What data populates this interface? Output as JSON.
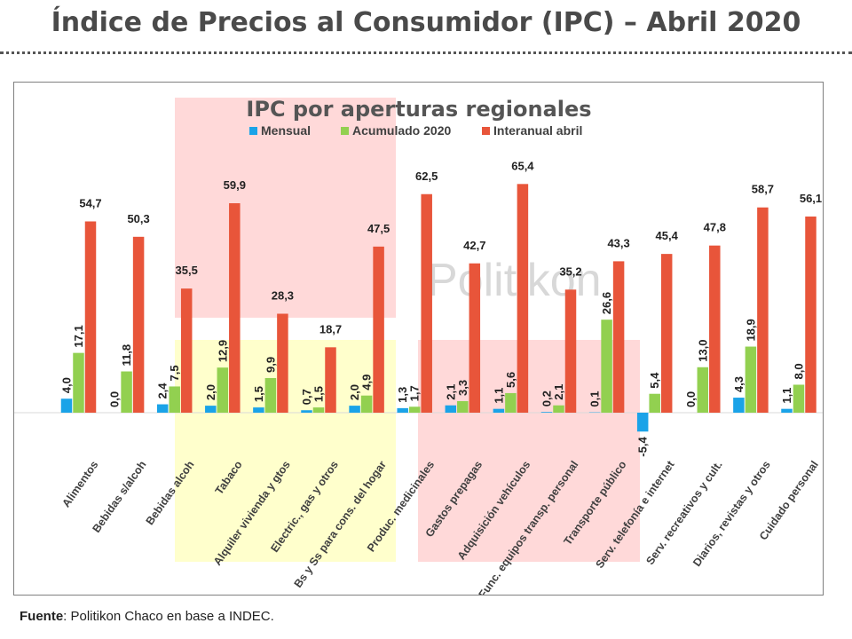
{
  "page": {
    "title": "Índice de Precios al Consumidor (IPC) – Abril 2020",
    "source_label": "Fuente",
    "source_text": ": Politikon Chaco en base a INDEC."
  },
  "watermark": "Politikon",
  "colors": {
    "mensual": "#1aa3e8",
    "acumulado": "#92d050",
    "interanual": "#e8553a",
    "red_region": "#ffd9d9",
    "yellow_region": "#ffffcc"
  },
  "chart_data": {
    "type": "bar",
    "title": "IPC por aperturas regionales",
    "categories": [
      "Alimentos",
      "Bebidas s/alcoh",
      "Bebidas alcoh",
      "Tabaco",
      "Alquiler vivienda y gtos",
      "Electric., gas y otros",
      "Bs y Ss para cons. del hogar",
      "Produc. medicinales",
      "Gastos prepagas",
      "Adquisición vehículos",
      "Func. equipos transp. personal",
      "Transporte público",
      "Serv. telefonía e internet",
      "Serv. recreativos y cult.",
      "Diarios, revistas y otros",
      "Cuidado personal"
    ],
    "series": [
      {
        "name": "Mensual",
        "values": [
          4.0,
          0.0,
          2.4,
          2.0,
          1.5,
          0.7,
          2.0,
          1.3,
          2.1,
          1.1,
          0.2,
          0.1,
          -5.4,
          0.0,
          4.3,
          1.1
        ],
        "labels": [
          "4,0",
          "0,0",
          "2,4",
          "2,0",
          "1,5",
          "0,7",
          "2,0",
          "1,3",
          "2,1",
          "1,1",
          "0,2",
          "0,1",
          "-5,4",
          "0,0",
          "4,3",
          "1,1"
        ]
      },
      {
        "name": "Acumulado 2020",
        "values": [
          17.1,
          11.8,
          7.5,
          12.9,
          9.9,
          1.5,
          4.9,
          1.7,
          3.3,
          5.6,
          2.1,
          26.6,
          5.4,
          13.0,
          18.9,
          8.0
        ],
        "labels": [
          "17,1",
          "11,8",
          "7,5",
          "12,9",
          "9,9",
          "1,5",
          "4,9",
          "1,7",
          "3,3",
          "5,6",
          "2,1",
          "26,6",
          "5,4",
          "13,0",
          "18,9",
          "8,0"
        ]
      },
      {
        "name": "Interanual abril",
        "values": [
          54.7,
          50.3,
          35.5,
          59.9,
          28.3,
          18.7,
          47.5,
          62.5,
          42.7,
          65.4,
          35.2,
          43.3,
          45.4,
          47.8,
          58.7,
          56.1
        ],
        "labels": [
          "54,7",
          "50,3",
          "35,5",
          "59,9",
          "28,3",
          "18,7",
          "47,5",
          "62,5",
          "42,7",
          "65,4",
          "35,2",
          "43,3",
          "45,4",
          "47,8",
          "58,7",
          "56,1"
        ]
      }
    ],
    "ylim": [
      -6,
      68
    ],
    "grid": false,
    "legend": "top-center"
  }
}
